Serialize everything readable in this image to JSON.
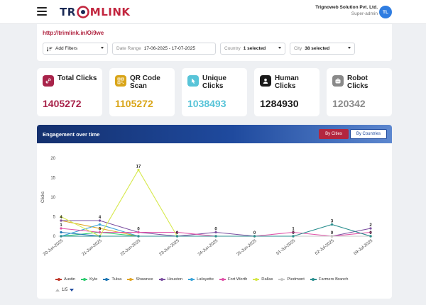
{
  "header": {
    "logo_text_a": "TR",
    "logo_text_b": "MLINK",
    "company_name": "Trignoweb Solution Pvt. Ltd.",
    "user_role": "Super-admin",
    "avatar_initials": "TL",
    "icons": [
      "hamburger-icon",
      "trimlink-logo"
    ]
  },
  "filters": {
    "short_url": "http://trimlink.in/Oi9we",
    "add_filters_label": "Add Filters",
    "date_range_label": "Date Range",
    "date_range_value": "17-06-2025 - 17-07-2025",
    "country_label": "Country",
    "country_value": "1 selected",
    "city_label": "City",
    "city_value": "38 selected"
  },
  "stats": [
    {
      "label": "Total Clicks",
      "value": "1405272",
      "color": "#a8234a",
      "icon": "link-icon"
    },
    {
      "label": "QR Code Scan",
      "value": "1105272",
      "color": "#d9a519",
      "icon": "qr-code-icon"
    },
    {
      "label": "Unique Clicks",
      "value": "1038493",
      "color": "#58c4d8",
      "icon": "cursor-icon"
    },
    {
      "label": "Human Clicks",
      "value": "1284930",
      "color": "#1a1a1a",
      "icon": "user-icon"
    },
    {
      "label": "Robot Clicks",
      "value": "120342",
      "color": "#8a8a8a",
      "icon": "robot-icon"
    }
  ],
  "chart": {
    "title": "Engagement over time",
    "btn_cities": "By Cities",
    "btn_countries": "By Countries",
    "pager": "1/5"
  },
  "chart_data": {
    "type": "line",
    "ylabel": "Clicks",
    "xlabel": "",
    "ylim": [
      0,
      20
    ],
    "yticks": [
      0,
      5,
      10,
      15,
      20
    ],
    "x": [
      "20-Jun-2025",
      "21-Jun-2025",
      "22-Jun-2025",
      "23-Jun-2025",
      "24-Jun-2025",
      "25-Jun-2025",
      "01-Jul-2025",
      "02-Jul-2025",
      "09-Jul-2025"
    ],
    "series": [
      {
        "name": "Austin",
        "color": "#c0392b",
        "values": [
          0,
          0,
          0,
          0,
          0,
          0,
          0,
          0,
          0
        ]
      },
      {
        "name": "Kyle",
        "color": "#2ecc71",
        "values": [
          0,
          1,
          0,
          0,
          0,
          0,
          0,
          0,
          0
        ]
      },
      {
        "name": "Tulsa",
        "color": "#1f77b4",
        "values": [
          1,
          0,
          0,
          0,
          0,
          0,
          0,
          0,
          0
        ]
      },
      {
        "name": "Shawnee",
        "color": "#e0a526",
        "values": [
          4,
          2,
          0,
          0,
          0,
          0,
          0,
          0,
          0
        ]
      },
      {
        "name": "Houston",
        "color": "#7b4fa0",
        "values": [
          4,
          4,
          1,
          0,
          1,
          0,
          0,
          0,
          2
        ]
      },
      {
        "name": "Lafayette",
        "color": "#3aa3d9",
        "values": [
          0,
          3,
          0,
          0,
          0,
          0,
          0,
          0,
          0
        ]
      },
      {
        "name": "Fort Worth",
        "color": "#e052a8",
        "values": [
          2,
          1,
          1,
          1,
          0,
          0,
          1,
          0,
          1
        ]
      },
      {
        "name": "Dallas",
        "color": "#d6e84a",
        "values": [
          5,
          0,
          17,
          0,
          0,
          0,
          0,
          0,
          0
        ]
      },
      {
        "name": "Piedmont",
        "color": "#c8c8c8",
        "values": [
          0,
          0,
          0,
          0,
          0,
          0,
          0,
          0,
          0
        ]
      },
      {
        "name": "Farmers Branch",
        "color": "#2b8f8f",
        "values": [
          0,
          0,
          0,
          0,
          0,
          0,
          0,
          3,
          0
        ]
      }
    ],
    "annotations": [
      {
        "x": "20-Jun-2025",
        "y": 4,
        "text": "4"
      },
      {
        "x": "20-Jun-2025",
        "y": 2,
        "text": "1"
      },
      {
        "x": "21-Jun-2025",
        "y": 4,
        "text": "4"
      },
      {
        "x": "21-Jun-2025",
        "y": 1,
        "text": "0"
      },
      {
        "x": "22-Jun-2025",
        "y": 17,
        "text": "17"
      },
      {
        "x": "22-Jun-2025",
        "y": 1,
        "text": "0"
      },
      {
        "x": "23-Jun-2025",
        "y": 0,
        "text": "0"
      },
      {
        "x": "24-Jun-2025",
        "y": 1,
        "text": "0"
      },
      {
        "x": "25-Jun-2025",
        "y": 0,
        "text": "0"
      },
      {
        "x": "01-Jul-2025",
        "y": 1,
        "text": "1"
      },
      {
        "x": "01-Jul-2025",
        "y": 0,
        "text": "0"
      },
      {
        "x": "02-Jul-2025",
        "y": 3,
        "text": "3"
      },
      {
        "x": "02-Jul-2025",
        "y": 0,
        "text": "0"
      },
      {
        "x": "09-Jul-2025",
        "y": 2,
        "text": "2"
      },
      {
        "x": "09-Jul-2025",
        "y": 0,
        "text": "0"
      }
    ],
    "grid": false,
    "legend": "bottom"
  }
}
